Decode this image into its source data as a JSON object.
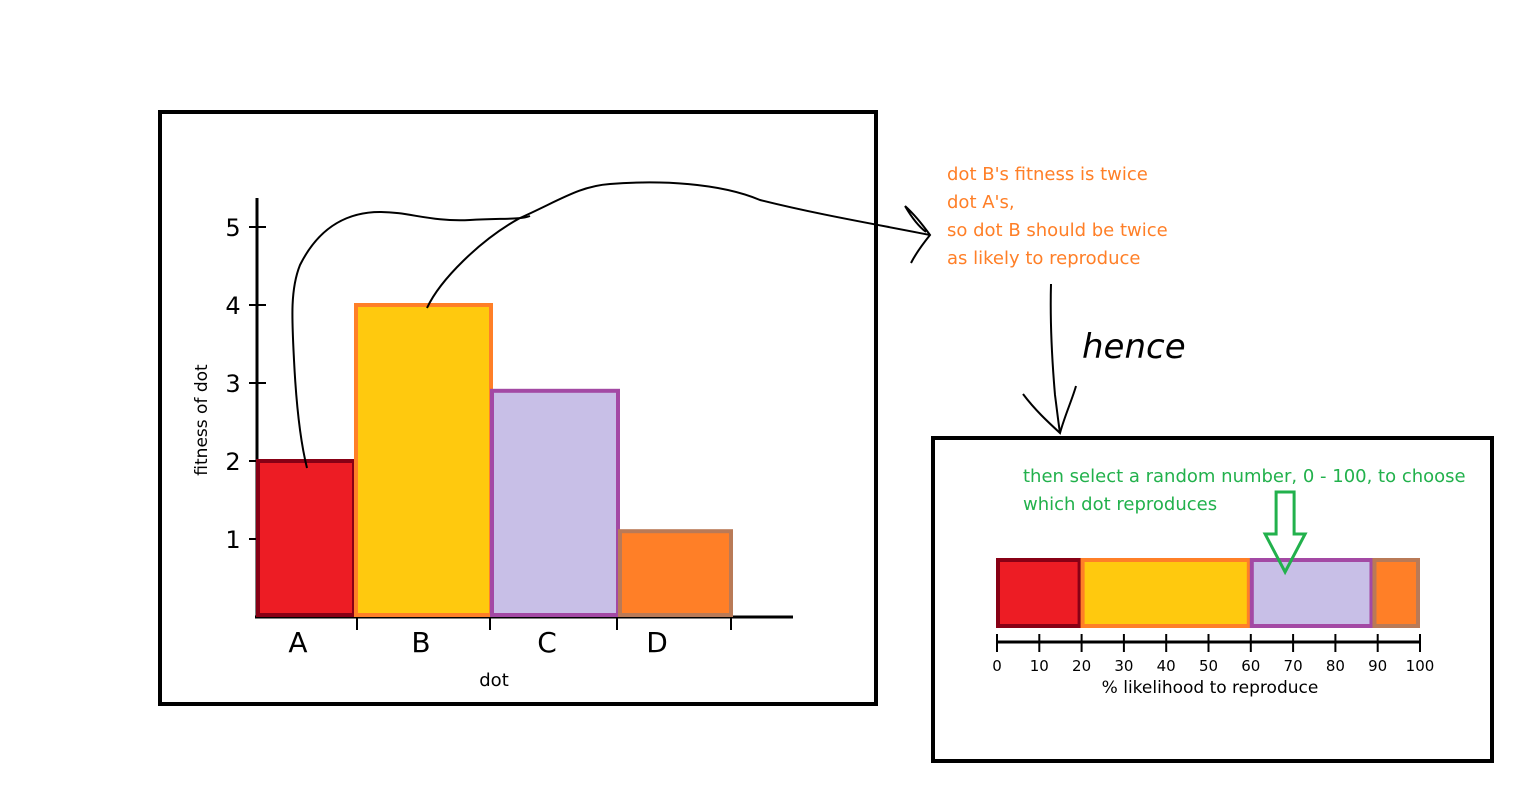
{
  "chart_data": {
    "type": "bar",
    "categories": [
      "A",
      "B",
      "C",
      "D"
    ],
    "values": [
      2,
      4,
      2.9,
      1.1
    ],
    "xlabel": "dot",
    "ylabel": "fitness of dot",
    "yticks": [
      "1",
      "2",
      "3",
      "4",
      "5"
    ],
    "ylim": [
      0,
      5.5
    ],
    "grid": false
  },
  "bar_colors": {
    "A": {
      "fill": "#ed1c24",
      "stroke": "#880015"
    },
    "B": {
      "fill": "#ffc90e",
      "stroke": "#ff7f27"
    },
    "C": {
      "fill": "#c8bfe7",
      "stroke": "#a349a4"
    },
    "D": {
      "fill": "#ff7f27",
      "stroke": "#b97a57"
    }
  },
  "annotation_lines": [
    "dot B's fitness is twice",
    "dot A's,",
    "so dot B should be twice",
    "as likely to reproduce"
  ],
  "annotation_color": "#ff7f27",
  "hence_label": "hence",
  "select_lines": [
    "then select a random number, 0 - 100, to choose",
    "which dot reproduces"
  ],
  "select_color": "#22b14c",
  "likelihood_bar": {
    "segments": [
      {
        "dot": "A",
        "start": 0,
        "end": 20
      },
      {
        "dot": "B",
        "start": 20,
        "end": 60
      },
      {
        "dot": "C",
        "start": 60,
        "end": 89
      },
      {
        "dot": "D",
        "start": 89,
        "end": 100
      }
    ],
    "ticks": [
      "0",
      "10",
      "20",
      "30",
      "40",
      "50",
      "60",
      "70",
      "80",
      "90",
      "100"
    ],
    "xlabel": "% likelihood to reproduce",
    "random_pick": 70
  }
}
